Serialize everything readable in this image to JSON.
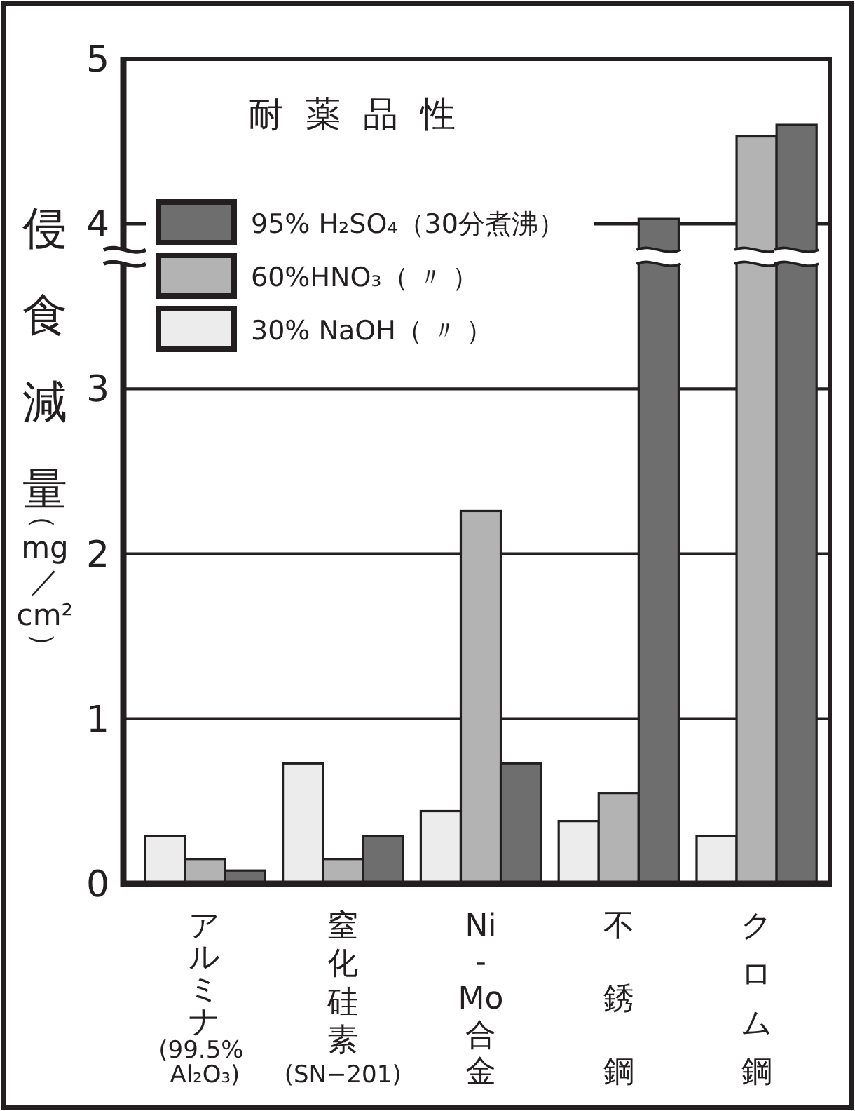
{
  "chart_data": {
    "type": "bar",
    "title": "耐薬品性",
    "ylabel": "侵食減量（mg／cm²）",
    "categories": [
      "アルミナ(99.5% Al₂O₃)",
      "窒化硅素(SN−201)",
      "Ni-Mo合金",
      "不銹鋼",
      "クロム鋼"
    ],
    "series": [
      {
        "name": "30% NaOH（ 〃 ）",
        "color": "#ececec",
        "values": [
          0.29,
          0.73,
          0.44,
          0.38,
          0.29
        ]
      },
      {
        "name": "60%HNO₃（ 〃 ）",
        "color": "#b3b3b3",
        "values": [
          0.15,
          0.15,
          2.26,
          0.55,
          4.53
        ]
      },
      {
        "name": "95% H₂SO₄（30分煮沸）",
        "color": "#6e6e6e",
        "values": [
          0.08,
          0.29,
          0.73,
          4.03,
          4.6
        ]
      }
    ],
    "ylim": [
      0,
      5
    ],
    "yticks": [
      0,
      1,
      2,
      3,
      4,
      5
    ],
    "grid": "y",
    "legend": "top left"
  }
}
